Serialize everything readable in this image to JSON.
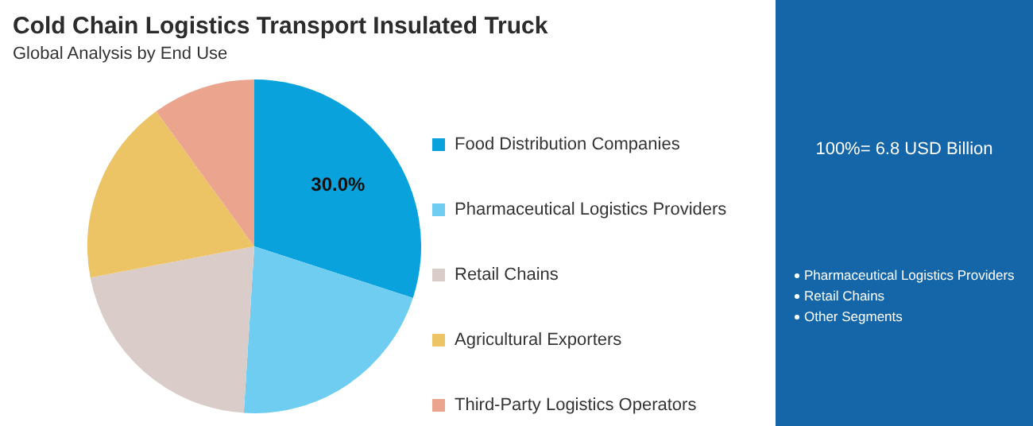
{
  "chart_data": {
    "type": "pie",
    "title": "Cold Chain Logistics Transport Insulated Truck",
    "subtitle": "Global Analysis by End Use",
    "categories": [
      "Food Distribution Companies",
      "Pharmaceutical Logistics Providers",
      "Retail Chains",
      "Agricultural Exporters",
      "Third-Party Logistics Operators"
    ],
    "values": [
      30,
      21,
      21,
      18,
      10
    ],
    "colors": [
      "#0aa2dc",
      "#6fcdf2",
      "#d9ccc9",
      "#ecc466",
      "#eba58f"
    ],
    "value_labels": [
      "30.0%",
      null,
      null,
      null,
      null
    ],
    "legend": "right",
    "annotations": [
      "100%= 6.8 USD Billion",
      "Pharmaceutical Logistics Providers",
      "Retail Chains",
      "Other Segments"
    ]
  }
}
